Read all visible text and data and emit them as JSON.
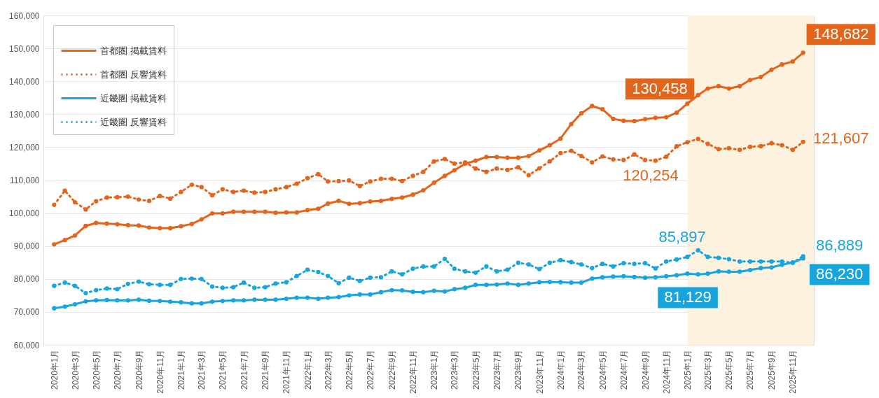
{
  "chart_data": {
    "type": "line",
    "x": [
      "2020-01",
      "2020-02",
      "2020-03",
      "2020-04",
      "2020-05",
      "2020-06",
      "2020-07",
      "2020-08",
      "2020-09",
      "2020-10",
      "2020-11",
      "2020-12",
      "2021-01",
      "2021-02",
      "2021-03",
      "2021-04",
      "2021-05",
      "2021-06",
      "2021-07",
      "2021-08",
      "2021-09",
      "2021-10",
      "2021-11",
      "2021-12",
      "2022-01",
      "2022-02",
      "2022-03",
      "2022-04",
      "2022-05",
      "2022-06",
      "2022-07",
      "2022-08",
      "2022-09",
      "2022-10",
      "2022-11",
      "2022-12",
      "2023-01",
      "2023-02",
      "2023-03",
      "2023-04",
      "2023-05",
      "2023-06",
      "2023-07",
      "2023-08",
      "2023-09",
      "2023-10",
      "2023-11",
      "2023-12",
      "2024-01",
      "2024-02",
      "2024-03",
      "2024-04",
      "2024-05",
      "2024-06",
      "2024-07",
      "2024-08",
      "2024-09",
      "2024-10",
      "2024-11",
      "2024-12",
      "2025-01",
      "2025-02",
      "2025-03",
      "2025-04",
      "2025-05",
      "2025-06",
      "2025-07",
      "2025-08",
      "2025-09",
      "2025-10",
      "2025-11",
      "2025-12"
    ],
    "xlim": [
      "2019-12",
      "2026-01"
    ],
    "xticks": [
      {
        "value": "2020-01",
        "label": "2020年1月"
      },
      {
        "value": "2020-03",
        "label": "2020年3月"
      },
      {
        "value": "2020-05",
        "label": "2020年5月"
      },
      {
        "value": "2020-07",
        "label": "2020年7月"
      },
      {
        "value": "2020-09",
        "label": "2020年9月"
      },
      {
        "value": "2020-11",
        "label": "2020年11月"
      },
      {
        "value": "2021-01",
        "label": "2021年1月"
      },
      {
        "value": "2021-03",
        "label": "2021年3月"
      },
      {
        "value": "2021-05",
        "label": "2021年5月"
      },
      {
        "value": "2021-07",
        "label": "2021年7月"
      },
      {
        "value": "2021-09",
        "label": "2021年9月"
      },
      {
        "value": "2021-11",
        "label": "2021年11月"
      },
      {
        "value": "2022-01",
        "label": "2022年1月"
      },
      {
        "value": "2022-03",
        "label": "2022年3月"
      },
      {
        "value": "2022-05",
        "label": "2022年5月"
      },
      {
        "value": "2022-07",
        "label": "2022年7月"
      },
      {
        "value": "2022-09",
        "label": "2022年9月"
      },
      {
        "value": "2022-11",
        "label": "2022年11月"
      },
      {
        "value": "2023-01",
        "label": "2023年1月"
      },
      {
        "value": "2023-03",
        "label": "2023年3月"
      },
      {
        "value": "2023-05",
        "label": "2023年5月"
      },
      {
        "value": "2023-07",
        "label": "2023年7月"
      },
      {
        "value": "2023-09",
        "label": "2023年9月"
      },
      {
        "value": "2023-11",
        "label": "2023年11月"
      },
      {
        "value": "2024-01",
        "label": "2024年1月"
      },
      {
        "value": "2024-03",
        "label": "2024年3月"
      },
      {
        "value": "2024-05",
        "label": "2024年5月"
      },
      {
        "value": "2024-07",
        "label": "2024年7月"
      },
      {
        "value": "2024-09",
        "label": "2024年9月"
      },
      {
        "value": "2024-11",
        "label": "2024年11月"
      },
      {
        "value": "2025-01",
        "label": "2025年1月"
      },
      {
        "value": "2025-03",
        "label": "2025年3月"
      },
      {
        "value": "2025-05",
        "label": "2025年5月"
      },
      {
        "value": "2025-07",
        "label": "2025年7月"
      },
      {
        "value": "2025-09",
        "label": "2025年9月"
      },
      {
        "value": "2025-11",
        "label": "2025年11月"
      }
    ],
    "ylim": [
      60000,
      160000
    ],
    "yticks": [
      {
        "value": 60000,
        "label": "60,000"
      },
      {
        "value": 70000,
        "label": "70,000"
      },
      {
        "value": 80000,
        "label": "80,000"
      },
      {
        "value": 90000,
        "label": "90,000"
      },
      {
        "value": 100000,
        "label": "100,000"
      },
      {
        "value": 110000,
        "label": "110,000"
      },
      {
        "value": 120000,
        "label": "120,000"
      },
      {
        "value": 130000,
        "label": "130,000"
      },
      {
        "value": 140000,
        "label": "140,000"
      },
      {
        "value": 150000,
        "label": "150,000"
      },
      {
        "value": 160000,
        "label": "160,000"
      }
    ],
    "grid": "y",
    "legend": "top left",
    "marker": "circle",
    "bands": [
      {
        "axis": "x",
        "from": "2025-01",
        "to": "2026-01",
        "color": "#fdf2df"
      }
    ],
    "series": [
      {
        "name": "首都圏 掲載賃料",
        "color": "#e2651b",
        "line_style": "solid",
        "values": [
          90500,
          91800,
          93200,
          96100,
          97000,
          96800,
          96600,
          96300,
          96200,
          95600,
          95400,
          95400,
          96000,
          96700,
          98100,
          99900,
          99900,
          100400,
          100400,
          100400,
          100400,
          100100,
          100200,
          100200,
          100900,
          101300,
          102900,
          103700,
          102800,
          103000,
          103500,
          103700,
          104300,
          104700,
          105600,
          106900,
          109200,
          111300,
          113000,
          115000,
          115900,
          117000,
          117000,
          116800,
          116800,
          117300,
          119000,
          120600,
          122600,
          127000,
          130300,
          132500,
          131500,
          128600,
          128000,
          127900,
          128500,
          128900,
          129100,
          130458,
          133200,
          135800,
          137800,
          138500,
          137800,
          138500,
          140400,
          141300,
          143500,
          145100,
          146000,
          148682
        ],
        "value_labels": [
          null,
          null,
          null,
          null,
          null,
          null,
          null,
          null,
          null,
          null,
          null,
          null,
          null,
          null,
          null,
          null,
          null,
          null,
          null,
          null,
          null,
          null,
          null,
          null,
          null,
          null,
          null,
          null,
          null,
          null,
          null,
          null,
          null,
          null,
          null,
          null,
          null,
          null,
          null,
          null,
          null,
          null,
          null,
          null,
          null,
          null,
          null,
          null,
          null,
          null,
          null,
          null,
          null,
          null,
          null,
          null,
          null,
          null,
          null,
          "130,458",
          null,
          null,
          null,
          null,
          null,
          null,
          null,
          null,
          null,
          null,
          null,
          "148,682"
        ]
      },
      {
        "name": "首都圏 反響賃料",
        "color": "#e2651b",
        "line_style": "dotted",
        "values": [
          102500,
          106800,
          103300,
          101100,
          103600,
          104700,
          104800,
          105000,
          104100,
          103700,
          105200,
          104400,
          106400,
          108600,
          107900,
          105400,
          107200,
          106400,
          106800,
          106200,
          106400,
          107200,
          107900,
          108900,
          110600,
          111800,
          109600,
          109700,
          109900,
          108200,
          109600,
          110400,
          110400,
          109700,
          111300,
          112500,
          115700,
          116400,
          115000,
          115400,
          113500,
          112500,
          113500,
          113100,
          113900,
          111500,
          113600,
          115700,
          118200,
          118900,
          117300,
          115400,
          117200,
          116300,
          116100,
          117800,
          116100,
          115900,
          117100,
          120254,
          121500,
          122500,
          121000,
          119400,
          119700,
          119200,
          120100,
          120300,
          121200,
          120600,
          119200,
          121607
        ],
        "value_labels": [
          null,
          null,
          null,
          null,
          null,
          null,
          null,
          null,
          null,
          null,
          null,
          null,
          null,
          null,
          null,
          null,
          null,
          null,
          null,
          null,
          null,
          null,
          null,
          null,
          null,
          null,
          null,
          null,
          null,
          null,
          null,
          null,
          null,
          null,
          null,
          null,
          null,
          null,
          null,
          null,
          null,
          null,
          null,
          null,
          null,
          null,
          null,
          null,
          null,
          null,
          null,
          null,
          null,
          null,
          null,
          null,
          null,
          null,
          null,
          "120,254",
          null,
          null,
          null,
          null,
          null,
          null,
          null,
          null,
          null,
          null,
          null,
          "121,607"
        ]
      },
      {
        "name": "近畿圏 掲載賃料",
        "color": "#18a4dc",
        "line_style": "solid",
        "values": [
          71100,
          71600,
          72300,
          73200,
          73500,
          73600,
          73500,
          73500,
          73700,
          73400,
          73300,
          73100,
          72900,
          72600,
          72600,
          73100,
          73300,
          73500,
          73500,
          73700,
          73700,
          73700,
          74000,
          74300,
          74300,
          74000,
          74300,
          74500,
          75000,
          75300,
          75300,
          76000,
          76600,
          76500,
          76100,
          76000,
          76400,
          76200,
          76900,
          77300,
          78200,
          78200,
          78300,
          78600,
          78200,
          78600,
          79000,
          79100,
          79000,
          78900,
          78900,
          80100,
          80500,
          80700,
          80800,
          80600,
          80400,
          80500,
          80800,
          81129,
          81600,
          81400,
          81600,
          82300,
          82200,
          82200,
          82700,
          83300,
          83500,
          84300,
          85000,
          86230
        ],
        "value_labels": [
          null,
          null,
          null,
          null,
          null,
          null,
          null,
          null,
          null,
          null,
          null,
          null,
          null,
          null,
          null,
          null,
          null,
          null,
          null,
          null,
          null,
          null,
          null,
          null,
          null,
          null,
          null,
          null,
          null,
          null,
          null,
          null,
          null,
          null,
          null,
          null,
          null,
          null,
          null,
          null,
          null,
          null,
          null,
          null,
          null,
          null,
          null,
          null,
          null,
          null,
          null,
          null,
          null,
          null,
          null,
          null,
          null,
          null,
          null,
          "81,129",
          null,
          null,
          null,
          null,
          null,
          null,
          null,
          null,
          null,
          null,
          null,
          "86,230"
        ]
      },
      {
        "name": "近畿圏 反響賃料",
        "color": "#18a4dc",
        "line_style": "dotted",
        "values": [
          77900,
          78900,
          77900,
          75700,
          76600,
          77100,
          76900,
          78500,
          79200,
          78400,
          78200,
          78200,
          80000,
          80100,
          80000,
          77700,
          77300,
          77500,
          78900,
          77300,
          77500,
          78600,
          79000,
          80900,
          82800,
          82100,
          80900,
          78700,
          80400,
          79400,
          80400,
          80500,
          82300,
          81400,
          83100,
          83800,
          83800,
          86100,
          83100,
          82300,
          81900,
          83800,
          82300,
          82800,
          84900,
          84400,
          83000,
          84900,
          85700,
          85100,
          84400,
          83300,
          84600,
          83800,
          84800,
          84600,
          84800,
          83200,
          85300,
          85897,
          86700,
          88700,
          86700,
          86400,
          86000,
          85300,
          85300,
          85300,
          85300,
          85300,
          84900,
          86889
        ],
        "value_labels": [
          null,
          null,
          null,
          null,
          null,
          null,
          null,
          null,
          null,
          null,
          null,
          null,
          null,
          null,
          null,
          null,
          null,
          null,
          null,
          null,
          null,
          null,
          null,
          null,
          null,
          null,
          null,
          null,
          null,
          null,
          null,
          null,
          null,
          null,
          null,
          null,
          null,
          null,
          null,
          null,
          null,
          null,
          null,
          null,
          null,
          null,
          null,
          null,
          null,
          null,
          null,
          null,
          null,
          null,
          null,
          null,
          null,
          null,
          null,
          "85,897",
          null,
          null,
          null,
          null,
          null,
          null,
          null,
          null,
          null,
          null,
          null,
          "86,889"
        ]
      }
    ]
  }
}
